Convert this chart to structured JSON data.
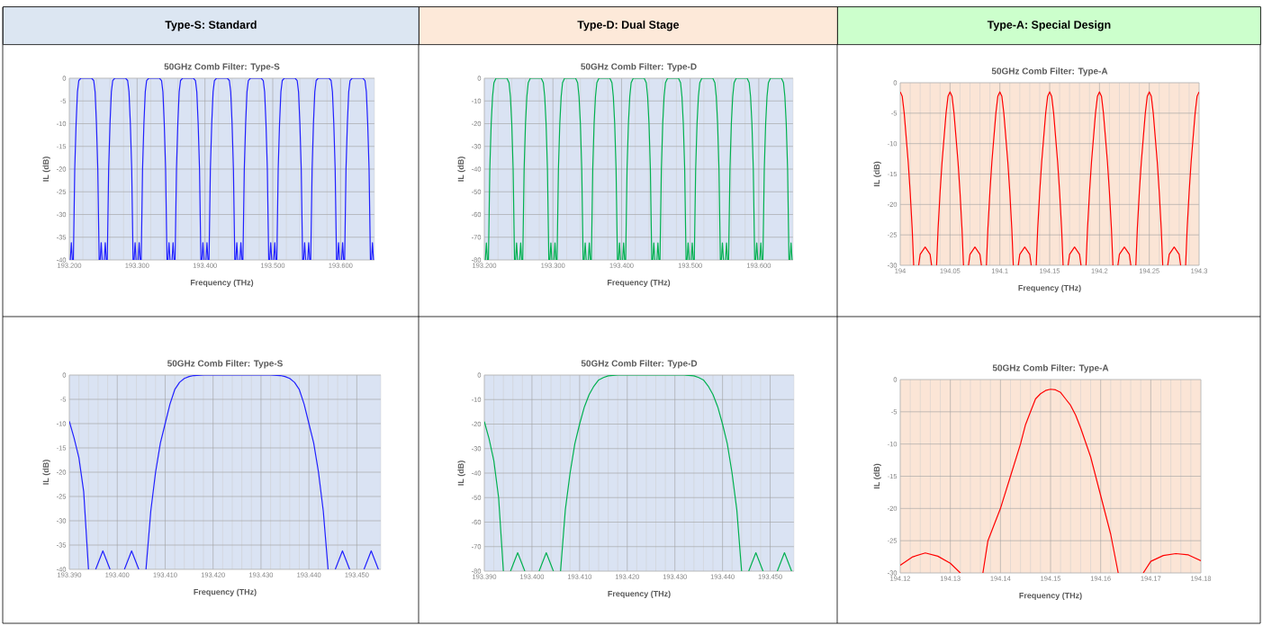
{
  "chart_data": [
    {
      "type": "other",
      "title": "Type-S: Standard"
    },
    {
      "type": "other",
      "title": "Type-D: Dual Stage"
    },
    {
      "type": "other",
      "title": "Type-A: Special Design"
    },
    {
      "type": "line",
      "title": "50GHz Comb Filter: Type-S",
      "xlabel": "Frequency (THz)",
      "ylabel": "IL (dB)",
      "grid": true,
      "xlim": [
        193.2,
        193.65
      ],
      "ylim": [
        -40,
        0
      ],
      "xticks": [
        {
          "value": 193.2,
          "label": "193.200"
        },
        {
          "value": 193.3,
          "label": "193.300"
        },
        {
          "value": 193.4,
          "label": "193.400"
        },
        {
          "value": 193.5,
          "label": "193.500"
        },
        {
          "value": 193.6,
          "label": "193.600"
        }
      ],
      "yticks": [
        -40,
        -35,
        -30,
        -25,
        -20,
        -15,
        -10,
        -5,
        0
      ],
      "series": [
        {
          "color": "#2020ff",
          "x": [
            193.2015,
            193.203,
            193.2045,
            193.205,
            193.206,
            193.208,
            193.21,
            193.212,
            193.214,
            193.217,
            193.233,
            193.236,
            193.238,
            193.24,
            193.242,
            193.244,
            193.245,
            193.2455,
            193.247,
            193.2485,
            193.25,
            193.2515,
            193.253,
            193.2545,
            193.255,
            193.256,
            193.258,
            193.26,
            193.262,
            193.264,
            193.267,
            193.283,
            193.286,
            193.288,
            193.29,
            193.292,
            193.294,
            193.295,
            193.2955,
            193.297,
            193.2985,
            193.3,
            193.3015,
            193.303,
            193.3045,
            193.305,
            193.306,
            193.308,
            193.31,
            193.312,
            193.314,
            193.317,
            193.333,
            193.336,
            193.338,
            193.34,
            193.342,
            193.344,
            193.345,
            193.3455,
            193.347,
            193.3485,
            193.35,
            193.3515,
            193.353,
            193.3545,
            193.355,
            193.356,
            193.358,
            193.36,
            193.362,
            193.364,
            193.367,
            193.383,
            193.386,
            193.388,
            193.39,
            193.392,
            193.394,
            193.395,
            193.3955,
            193.397,
            193.3985,
            193.4,
            193.4015,
            193.403,
            193.4045,
            193.405,
            193.406,
            193.408,
            193.41,
            193.412,
            193.414,
            193.417,
            193.433,
            193.436,
            193.438,
            193.44,
            193.442,
            193.444,
            193.445,
            193.4455,
            193.447,
            193.4485,
            193.45,
            193.4515,
            193.453,
            193.4545,
            193.455,
            193.456,
            193.458,
            193.46,
            193.462,
            193.464,
            193.467,
            193.483,
            193.486,
            193.488,
            193.49,
            193.492,
            193.494,
            193.495,
            193.4955,
            193.497,
            193.4985,
            193.5,
            193.5015,
            193.503,
            193.5045,
            193.505,
            193.506,
            193.508,
            193.51,
            193.512,
            193.514,
            193.517,
            193.533,
            193.536,
            193.538,
            193.54,
            193.542,
            193.544,
            193.545,
            193.5455,
            193.547,
            193.5485,
            193.55,
            193.5515,
            193.553,
            193.5545,
            193.555,
            193.556,
            193.558,
            193.56,
            193.562,
            193.564,
            193.567,
            193.583,
            193.586,
            193.588,
            193.59,
            193.592,
            193.594,
            193.595,
            193.5955,
            193.597,
            193.5985,
            193.6,
            193.6015,
            193.603,
            193.6045,
            193.605,
            193.606,
            193.608,
            193.61,
            193.612,
            193.614,
            193.617,
            193.633,
            193.636,
            193.638,
            193.64,
            193.642,
            193.644,
            193.645,
            193.6455,
            193.647,
            193.6485
          ],
          "values": [
            -40,
            -36.2,
            -40,
            null,
            -40,
            -20,
            -10,
            -3,
            -0.5,
            0,
            0,
            -0.5,
            -3,
            -10,
            -20,
            -40,
            null,
            -40,
            -36.2,
            -40,
            null,
            -40,
            -36.2,
            -40,
            null,
            -40,
            -20,
            -10,
            -3,
            -0.5,
            0,
            0,
            -0.5,
            -3,
            -10,
            -20,
            -40,
            null,
            -40,
            -36.2,
            -40,
            null,
            -40,
            -36.2,
            -40,
            null,
            -40,
            -20,
            -10,
            -3,
            -0.5,
            0,
            0,
            -0.5,
            -3,
            -10,
            -20,
            -40,
            null,
            -40,
            -36.2,
            -40,
            null,
            -40,
            -36.2,
            -40,
            null,
            -40,
            -20,
            -10,
            -3,
            -0.5,
            0,
            0,
            -0.5,
            -3,
            -10,
            -20,
            -40,
            null,
            -40,
            -36.2,
            -40,
            null,
            -40,
            -36.2,
            -40,
            null,
            -40,
            -20,
            -10,
            -3,
            -0.5,
            0,
            0,
            -0.5,
            -3,
            -10,
            -20,
            -40,
            null,
            -40,
            -36.2,
            -40,
            null,
            -40,
            -36.2,
            -40,
            null,
            -40,
            -20,
            -10,
            -3,
            -0.5,
            0,
            0,
            -0.5,
            -3,
            -10,
            -20,
            -40,
            null,
            -40,
            -36.2,
            -40,
            null,
            -40,
            -36.2,
            -40,
            null,
            -40,
            -20,
            -10,
            -3,
            -0.5,
            0,
            0,
            -0.5,
            -3,
            -10,
            -20,
            -40,
            null,
            -40,
            -36.2,
            -40,
            null,
            -40,
            -36.2,
            -40,
            null,
            -40,
            -20,
            -10,
            -3,
            -0.5,
            0,
            0,
            -0.5,
            -3,
            -10,
            -20,
            -40,
            null,
            -40,
            -36.2,
            -40,
            null,
            -40,
            -36.2,
            -40,
            null,
            -40,
            -20,
            -10,
            -3,
            -0.5,
            0,
            0,
            -0.5,
            -3,
            -10,
            -20,
            -40,
            null,
            -40,
            -36.2,
            -40
          ]
        }
      ]
    },
    {
      "type": "line",
      "title": "50GHz Comb Filter: Type-D",
      "xlabel": "Frequency (THz)",
      "ylabel": "IL (dB)",
      "grid": true,
      "xlim": [
        193.2,
        193.65
      ],
      "ylim": [
        -80,
        0
      ],
      "xticks": [
        {
          "value": 193.2,
          "label": "193.200"
        },
        {
          "value": 193.3,
          "label": "193.300"
        },
        {
          "value": 193.4,
          "label": "193.400"
        },
        {
          "value": 193.5,
          "label": "193.500"
        },
        {
          "value": 193.6,
          "label": "193.600"
        }
      ],
      "yticks": [
        -80,
        -70,
        -60,
        -50,
        -40,
        -30,
        -20,
        -10,
        0
      ],
      "series": [
        {
          "color": "#00b050",
          "x": [
            193.2015,
            193.203,
            193.2045,
            193.205,
            193.206,
            193.208,
            193.21,
            193.212,
            193.214,
            193.217,
            193.233,
            193.236,
            193.238,
            193.24,
            193.242,
            193.244,
            193.245,
            193.2455,
            193.247,
            193.2485,
            193.25,
            193.2515,
            193.253,
            193.2545,
            193.255,
            193.256,
            193.258,
            193.26,
            193.262,
            193.264,
            193.267,
            193.283,
            193.286,
            193.288,
            193.29,
            193.292,
            193.294,
            193.295,
            193.2955,
            193.297,
            193.2985,
            193.3,
            193.3015,
            193.303,
            193.3045,
            193.305,
            193.306,
            193.308,
            193.31,
            193.312,
            193.314,
            193.317,
            193.333,
            193.336,
            193.338,
            193.34,
            193.342,
            193.344,
            193.345,
            193.3455,
            193.347,
            193.3485,
            193.35,
            193.3515,
            193.353,
            193.3545,
            193.355,
            193.356,
            193.358,
            193.36,
            193.362,
            193.364,
            193.367,
            193.383,
            193.386,
            193.388,
            193.39,
            193.392,
            193.394,
            193.395,
            193.3955,
            193.397,
            193.3985,
            193.4,
            193.4015,
            193.403,
            193.4045,
            193.405,
            193.406,
            193.408,
            193.41,
            193.412,
            193.414,
            193.417,
            193.433,
            193.436,
            193.438,
            193.44,
            193.442,
            193.444,
            193.445,
            193.4455,
            193.447,
            193.4485,
            193.45,
            193.4515,
            193.453,
            193.4545,
            193.455,
            193.456,
            193.458,
            193.46,
            193.462,
            193.464,
            193.467,
            193.483,
            193.486,
            193.488,
            193.49,
            193.492,
            193.494,
            193.495,
            193.4955,
            193.497,
            193.4985,
            193.5,
            193.5015,
            193.503,
            193.5045,
            193.505,
            193.506,
            193.508,
            193.51,
            193.512,
            193.514,
            193.517,
            193.533,
            193.536,
            193.538,
            193.54,
            193.542,
            193.544,
            193.545,
            193.5455,
            193.547,
            193.5485,
            193.55,
            193.5515,
            193.553,
            193.5545,
            193.555,
            193.556,
            193.558,
            193.56,
            193.562,
            193.564,
            193.567,
            193.583,
            193.586,
            193.588,
            193.59,
            193.592,
            193.594,
            193.595,
            193.5955,
            193.597,
            193.5985,
            193.6,
            193.6015,
            193.603,
            193.6045,
            193.605,
            193.606,
            193.608,
            193.61,
            193.612,
            193.614,
            193.617,
            193.633,
            193.636,
            193.638,
            193.64,
            193.642,
            193.644,
            193.645,
            193.6455,
            193.647,
            193.6485
          ],
          "values": [
            -80,
            -72.5,
            -80,
            null,
            -80,
            -40,
            -20,
            -8,
            -2,
            0,
            0,
            -2,
            -8,
            -20,
            -40,
            -80,
            null,
            -80,
            -72.5,
            -80,
            null,
            -80,
            -72.5,
            -80,
            null,
            -80,
            -40,
            -20,
            -8,
            -2,
            0,
            0,
            -2,
            -8,
            -20,
            -40,
            -80,
            null,
            -80,
            -72.5,
            -80,
            null,
            -80,
            -72.5,
            -80,
            null,
            -80,
            -40,
            -20,
            -8,
            -2,
            0,
            0,
            -2,
            -8,
            -20,
            -40,
            -80,
            null,
            -80,
            -72.5,
            -80,
            null,
            -80,
            -72.5,
            -80,
            null,
            -80,
            -40,
            -20,
            -8,
            -2,
            0,
            0,
            -2,
            -8,
            -20,
            -40,
            -80,
            null,
            -80,
            -72.5,
            -80,
            null,
            -80,
            -72.5,
            -80,
            null,
            -80,
            -40,
            -20,
            -8,
            -2,
            0,
            0,
            -2,
            -8,
            -20,
            -40,
            -80,
            null,
            -80,
            -72.5,
            -80,
            null,
            -80,
            -72.5,
            -80,
            null,
            -80,
            -40,
            -20,
            -8,
            -2,
            0,
            0,
            -2,
            -8,
            -20,
            -40,
            -80,
            null,
            -80,
            -72.5,
            -80,
            null,
            -80,
            -72.5,
            -80,
            null,
            -80,
            -40,
            -20,
            -8,
            -2,
            0,
            0,
            -2,
            -8,
            -20,
            -40,
            -80,
            null,
            -80,
            -72.5,
            -80,
            null,
            -80,
            -72.5,
            -80,
            null,
            -80,
            -40,
            -20,
            -8,
            -2,
            0,
            0,
            -2,
            -8,
            -20,
            -40,
            -80,
            null,
            -80,
            -72.5,
            -80,
            null,
            -80,
            -72.5,
            -80,
            null,
            -80,
            -40,
            -20,
            -8,
            -2,
            0,
            0,
            -2,
            -8,
            -20,
            -40,
            -80,
            null,
            -80,
            -72.5,
            -80
          ]
        }
      ]
    },
    {
      "type": "line",
      "title": "50GHz Comb Filter: Type-A",
      "xlabel": "Frequency (THz)",
      "ylabel": "IL (dB)",
      "grid": true,
      "xlim": [
        194,
        194.3
      ],
      "ylim": [
        -30,
        0
      ],
      "xticks": [
        194,
        194.05,
        194.1,
        194.15,
        194.2,
        194.25,
        194.3
      ],
      "yticks": [
        -30,
        -25,
        -20,
        -15,
        -10,
        -5,
        0
      ],
      "series": [
        {
          "color": "#ff0000",
          "x": [
            194,
            194.002,
            194.004,
            194.006,
            194.008,
            194.01,
            194.012,
            194.0135,
            194.016,
            194.0185,
            194.02,
            194.025,
            194.03,
            194.0315,
            194.034,
            194.0365,
            194.038,
            194.04,
            194.042,
            194.044,
            194.046,
            194.048,
            194.05,
            194.052,
            194.054,
            194.056,
            194.058,
            194.06,
            194.062,
            194.0635,
            194.066,
            194.0685,
            194.07,
            194.075,
            194.08,
            194.0815,
            194.084,
            194.0865,
            194.088,
            194.09,
            194.092,
            194.094,
            194.096,
            194.098,
            194.1,
            194.102,
            194.104,
            194.106,
            194.108,
            194.11,
            194.112,
            194.1135,
            194.116,
            194.1185,
            194.12,
            194.125,
            194.13,
            194.1315,
            194.134,
            194.1365,
            194.138,
            194.14,
            194.142,
            194.144,
            194.146,
            194.148,
            194.15,
            194.152,
            194.154,
            194.156,
            194.158,
            194.16,
            194.162,
            194.1635,
            194.166,
            194.1685,
            194.17,
            194.175,
            194.18,
            194.1815,
            194.184,
            194.1865,
            194.188,
            194.19,
            194.192,
            194.194,
            194.196,
            194.198,
            194.2,
            194.202,
            194.204,
            194.206,
            194.208,
            194.21,
            194.212,
            194.2135,
            194.216,
            194.2185,
            194.22,
            194.225,
            194.23,
            194.2315,
            194.234,
            194.2365,
            194.238,
            194.24,
            194.242,
            194.244,
            194.246,
            194.248,
            194.25,
            194.252,
            194.254,
            194.256,
            194.258,
            194.26,
            194.262,
            194.2635,
            194.266,
            194.2685,
            194.27,
            194.275,
            194.28,
            194.2815,
            194.284,
            194.2865,
            194.288,
            194.29,
            194.292,
            194.294,
            194.296,
            194.298,
            194.3
          ],
          "values": [
            -1.5,
            -2.2,
            -5,
            -9,
            -13,
            -18,
            -24,
            -30,
            null,
            -30,
            -28.2,
            -27,
            -28.2,
            -30,
            null,
            -30,
            -24,
            -18,
            -13,
            -9,
            -5,
            -2.2,
            -1.5,
            -2.2,
            -5,
            -9,
            -13,
            -18,
            -24,
            -30,
            null,
            -30,
            -28.2,
            -27,
            -28.2,
            -30,
            null,
            -30,
            -24,
            -18,
            -13,
            -9,
            -5,
            -2.2,
            -1.5,
            -2.2,
            -5,
            -9,
            -13,
            -18,
            -24,
            -30,
            null,
            -30,
            -28.2,
            -27,
            -28.2,
            -30,
            null,
            -30,
            -24,
            -18,
            -13,
            -9,
            -5,
            -2.2,
            -1.5,
            -2.2,
            -5,
            -9,
            -13,
            -18,
            -24,
            -30,
            null,
            -30,
            -28.2,
            -27,
            -28.2,
            -30,
            null,
            -30,
            -24,
            -18,
            -13,
            -9,
            -5,
            -2.2,
            -1.5,
            -2.2,
            -5,
            -9,
            -13,
            -18,
            -24,
            -30,
            null,
            -30,
            -28.2,
            -27,
            -28.2,
            -30,
            null,
            -30,
            -24,
            -18,
            -13,
            -9,
            -5,
            -2.2,
            -1.5,
            -2.2,
            -5,
            -9,
            -13,
            -18,
            -24,
            -30,
            null,
            -30,
            -28.2,
            -27,
            -28.2,
            -30,
            null,
            -30,
            -24,
            -18,
            -13,
            -9,
            -5,
            -2.2,
            -1.5
          ]
        }
      ]
    },
    {
      "type": "line",
      "title": "50GHz Comb Filter: Type-S",
      "xlabel": "Frequency (THz)",
      "ylabel": "IL (dB)",
      "grid": true,
      "xlim": [
        193.39,
        193.455
      ],
      "ylim": [
        -40,
        0
      ],
      "xticks": [
        {
          "value": 193.39,
          "label": "193.390"
        },
        {
          "value": 193.4,
          "label": "193.400"
        },
        {
          "value": 193.41,
          "label": "193.410"
        },
        {
          "value": 193.42,
          "label": "193.420"
        },
        {
          "value": 193.43,
          "label": "193.430"
        },
        {
          "value": 193.44,
          "label": "193.440"
        },
        {
          "value": 193.45,
          "label": "193.450"
        }
      ],
      "yticks": [
        -40,
        -35,
        -30,
        -25,
        -20,
        -15,
        -10,
        -5,
        0
      ],
      "series": [
        {
          "color": "#2020ff",
          "x": [
            193.39,
            193.391,
            193.392,
            193.393,
            193.394,
            193.3945,
            193.3955,
            193.397,
            193.3985,
            193.4,
            193.4015,
            193.403,
            193.4045,
            193.405,
            193.406,
            193.407,
            193.408,
            193.409,
            193.41,
            193.411,
            193.412,
            193.413,
            193.414,
            193.415,
            193.416,
            193.418,
            193.432,
            193.434,
            193.435,
            193.436,
            193.437,
            193.438,
            193.439,
            193.44,
            193.441,
            193.442,
            193.443,
            193.444,
            193.445,
            193.4455,
            193.447,
            193.4485,
            193.45,
            193.4515,
            193.453,
            193.4545
          ],
          "values": [
            -9.5,
            -13,
            -17,
            -24,
            -40,
            null,
            -40,
            -36.2,
            -40,
            null,
            -40,
            -36.2,
            -40,
            null,
            -40,
            -28,
            -20,
            -14,
            -10,
            -6,
            -3,
            -1.5,
            -0.7,
            -0.3,
            -0.1,
            0,
            0,
            -0.1,
            -0.3,
            -0.7,
            -1.5,
            -3,
            -6,
            -10,
            -14,
            -20,
            -28,
            -40,
            null,
            -40,
            -36.2,
            -40,
            null,
            -40,
            -36.2,
            -40
          ]
        }
      ]
    },
    {
      "type": "line",
      "title": "50GHz Comb Filter: Type-D",
      "xlabel": "Frequency (THz)",
      "ylabel": "IL (dB)",
      "grid": true,
      "xlim": [
        193.39,
        193.455
      ],
      "ylim": [
        -80,
        0
      ],
      "xticks": [
        {
          "value": 193.39,
          "label": "193.390"
        },
        {
          "value": 193.4,
          "label": "193.400"
        },
        {
          "value": 193.41,
          "label": "193.410"
        },
        {
          "value": 193.42,
          "label": "193.420"
        },
        {
          "value": 193.43,
          "label": "193.430"
        },
        {
          "value": 193.44,
          "label": "193.440"
        },
        {
          "value": 193.45,
          "label": "193.450"
        }
      ],
      "yticks": [
        -80,
        -70,
        -60,
        -50,
        -40,
        -30,
        -20,
        -10,
        0
      ],
      "series": [
        {
          "color": "#00b050",
          "x": [
            193.39,
            193.391,
            193.392,
            193.393,
            193.394,
            193.3945,
            193.3955,
            193.397,
            193.3985,
            193.4,
            193.4015,
            193.403,
            193.4045,
            193.405,
            193.406,
            193.407,
            193.408,
            193.409,
            193.41,
            193.411,
            193.412,
            193.413,
            193.414,
            193.415,
            193.416,
            193.418,
            193.432,
            193.434,
            193.435,
            193.436,
            193.437,
            193.438,
            193.439,
            193.44,
            193.441,
            193.442,
            193.443,
            193.444,
            193.445,
            193.4455,
            193.447,
            193.4485,
            193.45,
            193.4515,
            193.453,
            193.4545
          ],
          "values": [
            -19,
            -26,
            -35,
            -50,
            -80,
            null,
            -80,
            -72.5,
            -80,
            null,
            -80,
            -72.5,
            -80,
            null,
            -80,
            -55,
            -40,
            -28,
            -20,
            -13,
            -8,
            -4.5,
            -2,
            -1,
            -0.3,
            0,
            0,
            -0.3,
            -1,
            -2,
            -4.5,
            -8,
            -13,
            -20,
            -28,
            -40,
            -55,
            -80,
            null,
            -80,
            -72.5,
            -80,
            null,
            -80,
            -72.5,
            -80
          ]
        }
      ]
    },
    {
      "type": "line",
      "title": "50GHz Comb Filter: Type-A",
      "xlabel": "Frequency (THz)",
      "ylabel": "IL (dB)",
      "grid": true,
      "xlim": [
        194.12,
        194.18
      ],
      "ylim": [
        -30,
        0
      ],
      "xticks": [
        194.12,
        194.13,
        194.14,
        194.15,
        194.16,
        194.17,
        194.18
      ],
      "yticks": [
        -30,
        -25,
        -20,
        -15,
        -10,
        -5,
        0
      ],
      "series": [
        {
          "color": "#ff0000",
          "x": [
            194.12,
            194.1225,
            194.125,
            194.1275,
            194.13,
            194.132,
            194.134,
            194.1365,
            194.1375,
            194.14,
            194.142,
            194.144,
            194.145,
            194.146,
            194.147,
            194.148,
            194.149,
            194.15,
            194.151,
            194.152,
            194.153,
            194.154,
            194.155,
            194.156,
            194.158,
            194.16,
            194.161,
            194.162,
            194.1635,
            194.166,
            194.1685,
            194.17,
            194.1725,
            194.175,
            194.1775,
            194.18
          ],
          "values": [
            -28.8,
            -27.5,
            -26.9,
            -27.4,
            -28.5,
            -30,
            null,
            -30,
            -25,
            -20,
            -15,
            -10,
            -7,
            -5,
            -3,
            -2.2,
            -1.7,
            -1.5,
            -1.6,
            -2,
            -3,
            -4,
            -5.5,
            -7.5,
            -12,
            -18,
            -21,
            -24,
            -30,
            null,
            -30,
            -28.2,
            -27.3,
            -27,
            -27.2,
            -28.1
          ]
        }
      ]
    }
  ]
}
